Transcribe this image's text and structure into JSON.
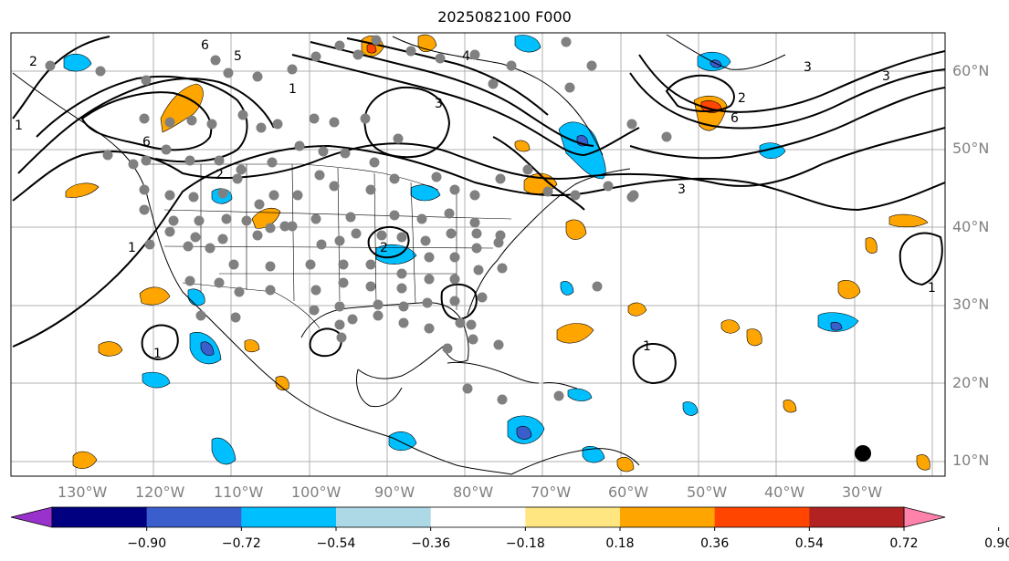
{
  "title": "2025082100 F000",
  "latitude_labels": [
    "60°N",
    "50°N",
    "40°N",
    "30°N",
    "20°N",
    "10°N"
  ],
  "longitude_labels": [
    "130°W",
    "120°W",
    "110°W",
    "100°W",
    "90°W",
    "80°W",
    "70°W",
    "60°W",
    "50°W",
    "40°W",
    "30°W"
  ],
  "colorbar": {
    "ticks": [
      "−0.90",
      "−0.72",
      "−0.54",
      "−0.36",
      "−0.18",
      "0.18",
      "0.36",
      "0.54",
      "0.72",
      "0.90"
    ],
    "colors": [
      "#9932cc",
      "#000080",
      "#3a5fcd",
      "#00bfff",
      "#add8e6",
      "#ffffff",
      "#ffe680",
      "#ffa500",
      "#ff4500",
      "#b22222",
      "#ff82ab"
    ],
    "extend": "both"
  },
  "contour_labels": [
    "6",
    "5",
    "4",
    "3",
    "2",
    "1"
  ],
  "colors": {
    "station_dot": "#808080",
    "contour": "#000000",
    "grid": "#b0b0b0",
    "positive_shade": "#ffa500",
    "negative_shade": "#00bfff",
    "strong_negative_shade": "#3a5fcd"
  }
}
